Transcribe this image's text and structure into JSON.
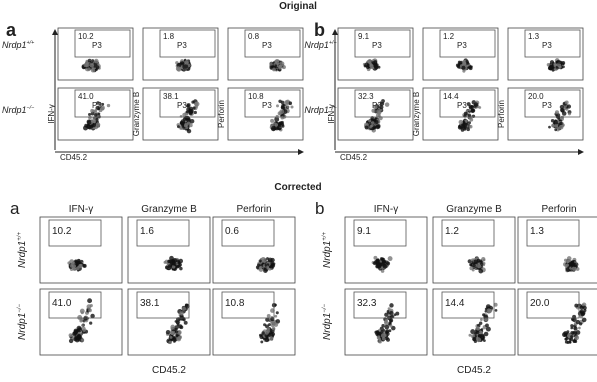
{
  "original": {
    "title": "Original",
    "panels": [
      {
        "letter": "a",
        "gene": "Nrdp1",
        "genotypes": [
          "+/+",
          "−/−"
        ],
        "axis_labels": [
          "IFN-γ",
          "Granzyme B",
          "Perforin"
        ],
        "x_label": "CD45.2",
        "gate_label": "P3",
        "values": [
          [
            "10.2",
            "1.8",
            "0.8"
          ],
          [
            "41.0",
            "38.1",
            "10.8"
          ]
        ]
      },
      {
        "letter": "b",
        "gene": "Nrdp1",
        "genotypes": [
          "+/+",
          "−/−"
        ],
        "axis_labels": [
          "IFN-γ",
          "Granzyme B",
          "Perforin"
        ],
        "x_label": "CD45.2",
        "gate_label": "P3",
        "values": [
          [
            "9.1",
            "1.2",
            "1.3"
          ],
          [
            "32.3",
            "14.4",
            "20.0"
          ]
        ]
      }
    ]
  },
  "corrected": {
    "title": "Corrected",
    "panels": [
      {
        "letter": "a",
        "gene": "Nrdp1",
        "genotypes": [
          "+/+",
          "−/−"
        ],
        "axis_labels": [
          "IFN-γ",
          "Granzyme B",
          "Perforin"
        ],
        "x_label": "CD45.2",
        "values": [
          [
            "10.2",
            "1.6",
            "0.6"
          ],
          [
            "41.0",
            "38.1",
            "10.8"
          ]
        ]
      },
      {
        "letter": "b",
        "gene": "Nrdp1",
        "genotypes": [
          "+/+",
          "−/−"
        ],
        "axis_labels": [
          "IFN-γ",
          "Granzyme B",
          "Perforin"
        ],
        "x_label": "CD45.2",
        "values": [
          [
            "9.1",
            "1.2",
            "1.3"
          ],
          [
            "32.3",
            "14.4",
            "20.0"
          ]
        ]
      }
    ]
  }
}
